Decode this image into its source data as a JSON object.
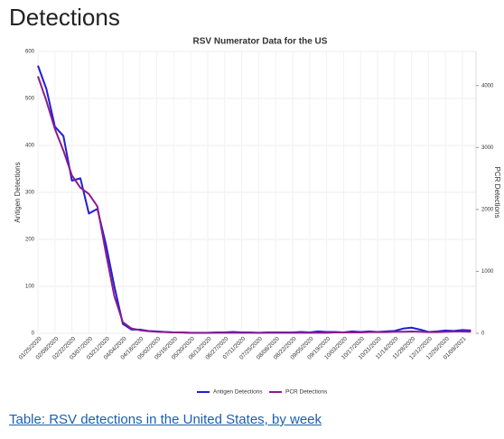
{
  "header": "Detections",
  "link": "Table: RSV detections in the United States, by week",
  "chart_data": {
    "type": "line",
    "title": "RSV Numerator Data for the US",
    "ylabel": "Antigen Detections",
    "y2label": "PCR Detections",
    "categories": [
      "01/25/2020",
      null,
      "02/08/2020",
      null,
      "02/22/2020",
      null,
      "03/07/2020",
      null,
      "03/21/2020",
      null,
      "04/04/2020",
      null,
      "04/18/2020",
      null,
      "05/02/2020",
      null,
      "05/16/2020",
      null,
      "05/30/2020",
      null,
      "06/13/2020",
      null,
      "06/27/2020",
      null,
      "07/11/2020",
      null,
      "07/25/2020",
      null,
      "08/08/2020",
      null,
      "08/22/2020",
      null,
      "09/05/2020",
      null,
      "09/19/2020",
      null,
      "10/03/2020",
      null,
      "10/17/2020",
      null,
      "10/31/2020",
      null,
      "11/14/2020",
      null,
      "11/28/2020",
      null,
      "12/12/2020",
      null,
      "12/26/2020",
      null,
      "01/09/2021",
      null
    ],
    "series": [
      {
        "name": "Antigen Detections",
        "color": "#1f1fd6",
        "values": [
          570,
          520,
          440,
          420,
          325,
          330,
          255,
          265,
          190,
          100,
          20,
          8,
          8,
          5,
          4,
          3,
          2,
          2,
          1,
          1,
          1,
          2,
          2,
          3,
          2,
          2,
          1,
          2,
          2,
          2,
          2,
          3,
          2,
          4,
          3,
          3,
          2,
          4,
          3,
          4,
          3,
          4,
          5,
          10,
          12,
          8,
          3,
          4,
          6,
          5,
          7,
          6
        ]
      },
      {
        "name": "PCR Detections",
        "color": "#8e1a8e",
        "axis": "y2",
        "values": [
          4150,
          3750,
          3300,
          2950,
          2550,
          2350,
          2250,
          2050,
          1300,
          600,
          180,
          80,
          50,
          35,
          25,
          20,
          15,
          12,
          10,
          10,
          10,
          10,
          10,
          10,
          10,
          10,
          10,
          10,
          10,
          10,
          10,
          10,
          10,
          10,
          10,
          15,
          15,
          15,
          15,
          20,
          20,
          20,
          25,
          25,
          30,
          25,
          20,
          20,
          25,
          30,
          30,
          25
        ]
      }
    ],
    "ylim": [
      0,
      600
    ],
    "yticks": [
      0,
      100,
      200,
      300,
      400,
      500,
      600
    ],
    "y2lim": [
      0,
      4550
    ],
    "y2ticks": [
      0,
      1000,
      2000,
      3000,
      4000
    ],
    "grid": true,
    "legend": "bottom"
  }
}
